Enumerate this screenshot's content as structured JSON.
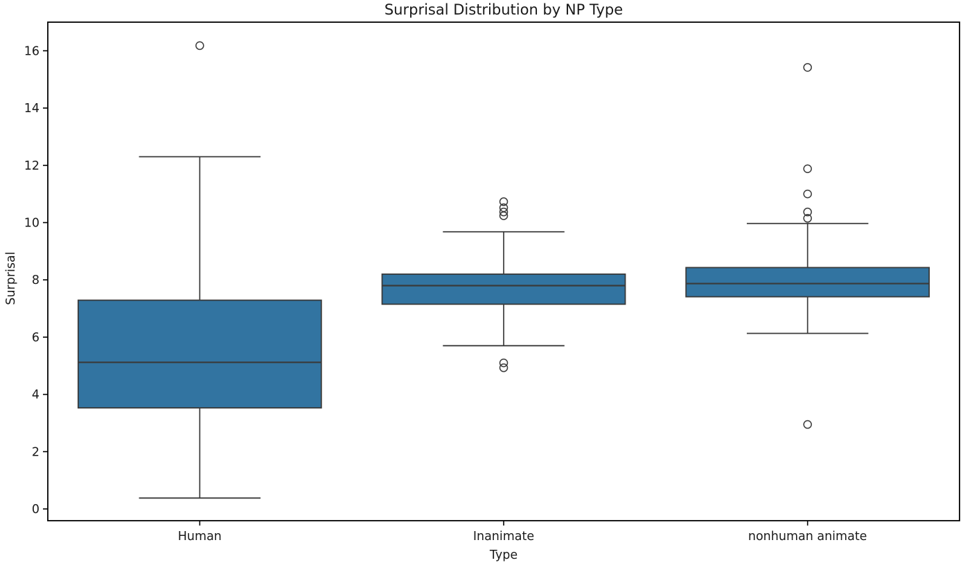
{
  "chart_data": {
    "type": "box",
    "title": "Surprisal Distribution by NP Type",
    "xlabel": "Type",
    "ylabel": "Surprisal",
    "categories": [
      "Human",
      "Inanimate",
      "nonhuman animate"
    ],
    "yticks": [
      0,
      2,
      4,
      6,
      8,
      10,
      12,
      14,
      16
    ],
    "ylim": [
      -0.41,
      17.0
    ],
    "grid": false,
    "legend": "none",
    "box_fill_color": "#3274a1",
    "line_color": "#3a3a3a",
    "spine_color": "#000000",
    "series": [
      {
        "category": "Human",
        "whisker_low": 0.38,
        "q1": 3.53,
        "median": 5.12,
        "q3": 7.29,
        "whisker_high": 12.3,
        "outliers": [
          16.18
        ]
      },
      {
        "category": "Inanimate",
        "whisker_low": 5.7,
        "q1": 7.15,
        "median": 7.8,
        "q3": 8.2,
        "whisker_high": 9.68,
        "outliers": [
          4.93,
          5.1,
          10.24,
          10.37,
          10.52,
          10.73
        ]
      },
      {
        "category": "nonhuman animate",
        "whisker_low": 6.13,
        "q1": 7.41,
        "median": 7.87,
        "q3": 8.43,
        "whisker_high": 9.97,
        "outliers": [
          2.95,
          10.15,
          10.37,
          11.0,
          11.88,
          15.42
        ]
      }
    ]
  }
}
